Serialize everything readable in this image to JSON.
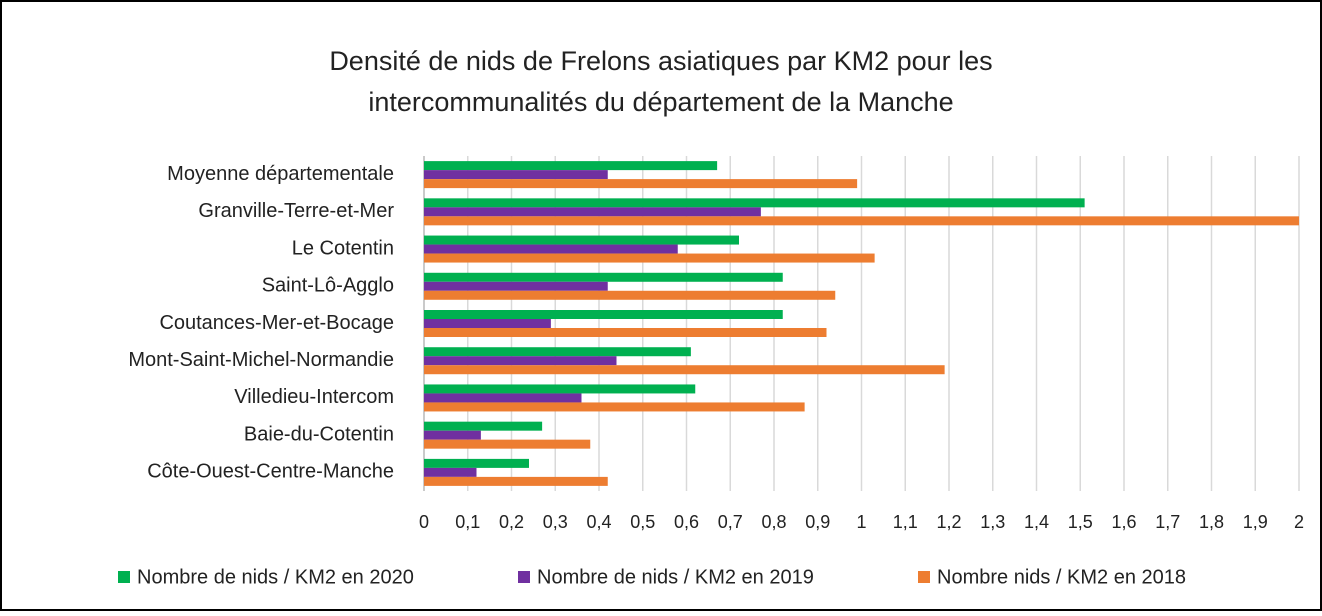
{
  "chart_data": {
    "type": "hbar",
    "title": [
      "Densité de nids de Frelons asiatiques par KM2 pour les",
      "intercommunalités du département de la Manche"
    ],
    "categories": [
      "Moyenne départementale",
      "Granville-Terre-et-Mer",
      "Le Cotentin",
      "Saint-Lô-Agglo",
      "Coutances-Mer-et-Bocage",
      "Mont-Saint-Michel-Normandie",
      "Villedieu-Intercom",
      "Baie-du-Cotentin",
      "Côte-Ouest-Centre-Manche"
    ],
    "series": [
      {
        "name": "Nombre de nids / KM2 en 2020",
        "color": "#00b050",
        "values": [
          0.67,
          1.51,
          0.72,
          0.82,
          0.82,
          0.61,
          0.62,
          0.27,
          0.24
        ]
      },
      {
        "name": "Nombre de nids / KM2 en 2019",
        "color": "#7030a0",
        "values": [
          0.42,
          0.77,
          0.58,
          0.42,
          0.29,
          0.44,
          0.36,
          0.13,
          0.12
        ]
      },
      {
        "name": "Nombre nids / KM2 en 2018",
        "color": "#ed7d31",
        "values": [
          0.99,
          2.0,
          1.03,
          0.94,
          0.92,
          1.19,
          0.87,
          0.38,
          0.42
        ]
      }
    ],
    "xlim": [
      0,
      2
    ],
    "xticks": [
      0,
      {
        "value": 0.1,
        "label": "0,1"
      },
      {
        "value": 0.2,
        "label": "0,2"
      },
      {
        "value": 0.3,
        "label": "0,3"
      },
      {
        "value": 0.4,
        "label": "0,4"
      },
      {
        "value": 0.5,
        "label": "0,5"
      },
      {
        "value": 0.6,
        "label": "0,6"
      },
      {
        "value": 0.7,
        "label": "0,7"
      },
      {
        "value": 0.8,
        "label": "0,8"
      },
      {
        "value": 0.9,
        "label": "0,9"
      },
      1,
      {
        "value": 1.1,
        "label": "1,1"
      },
      {
        "value": 1.2,
        "label": "1,2"
      },
      {
        "value": 1.3,
        "label": "1,3"
      },
      {
        "value": 1.4,
        "label": "1,4"
      },
      {
        "value": 1.5,
        "label": "1,5"
      },
      {
        "value": 1.6,
        "label": "1,6"
      },
      {
        "value": 1.7,
        "label": "1,7"
      },
      {
        "value": 1.8,
        "label": "1,8"
      },
      {
        "value": 1.9,
        "label": "1,9"
      },
      2
    ],
    "grid": true,
    "legend": "bottom"
  }
}
